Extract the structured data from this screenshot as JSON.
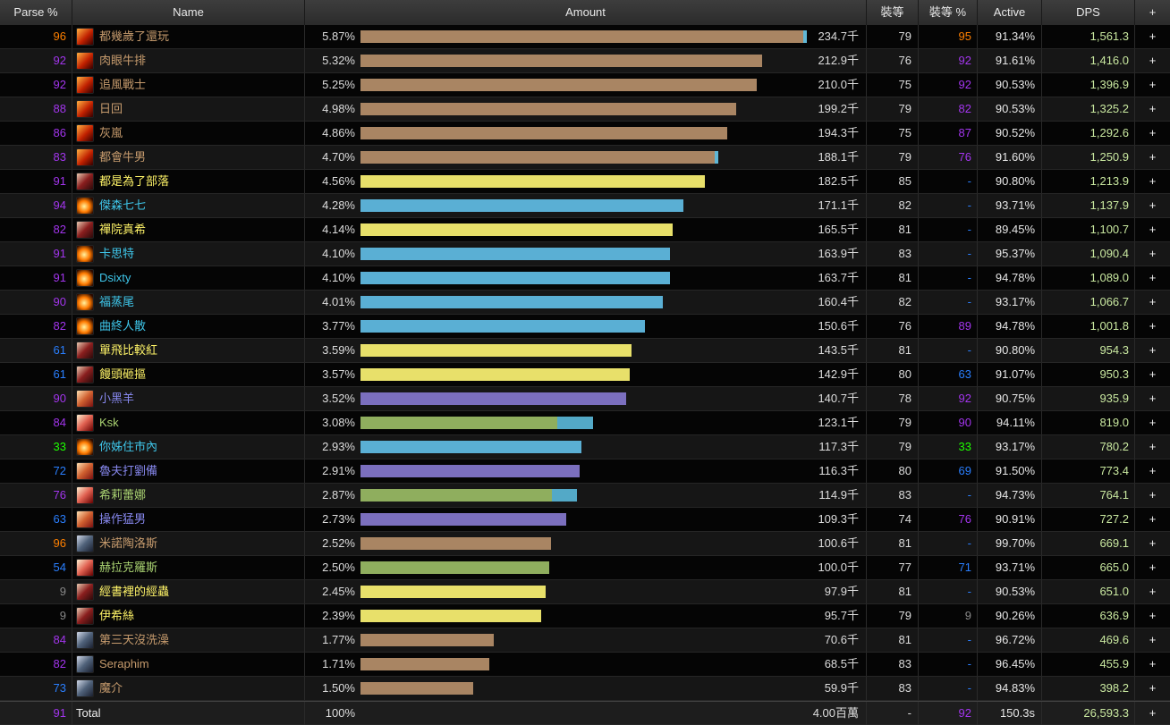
{
  "headers": [
    "Parse %",
    "Name",
    "Amount",
    "裝等",
    "裝等 %",
    "Active",
    "DPS",
    "+"
  ],
  "class_colors": {
    "dk": {
      "name": "#c69b6d",
      "bar": "#a98563",
      "bar2": "#5fb7d6"
    },
    "war": {
      "name": "#fff468",
      "bar": "#e8e06a"
    },
    "mage": {
      "name": "#3fc7eb",
      "bar": "#5aafd4"
    },
    "hunt": {
      "name": "#aad372",
      "bar": "#8fae5e",
      "bar2": "#53a9c7"
    },
    "sham": {
      "name": "#8788ee",
      "bar": "#7b6fbe"
    },
    "pal": {
      "name": "#c69b6d",
      "bar": "#a98563"
    }
  },
  "max_percent": 5.87,
  "rows": [
    {
      "parse": "96",
      "parse_color": "orange",
      "name": "都幾歲了還玩",
      "cls": "dk",
      "icon": "death-knight-icon",
      "percent": "5.87%",
      "pct": 5.87,
      "pct2": 0.05,
      "amount": "234.7千",
      "ilvl": "79",
      "ilvl_p": "95",
      "ilvl_p_color": "orange",
      "active": "91.34%",
      "dps": "1,561.3"
    },
    {
      "parse": "92",
      "parse_color": "purple",
      "name": "肉眼牛排",
      "cls": "dk",
      "icon": "death-knight-icon",
      "percent": "5.32%",
      "pct": 5.32,
      "pct2": 0,
      "amount": "212.9千",
      "ilvl": "76",
      "ilvl_p": "92",
      "ilvl_p_color": "purple",
      "active": "91.61%",
      "dps": "1,416.0"
    },
    {
      "parse": "92",
      "parse_color": "purple",
      "name": "追風戰士",
      "cls": "dk",
      "icon": "death-knight-icon",
      "percent": "5.25%",
      "pct": 5.25,
      "pct2": 0,
      "amount": "210.0千",
      "ilvl": "75",
      "ilvl_p": "92",
      "ilvl_p_color": "purple",
      "active": "90.53%",
      "dps": "1,396.9"
    },
    {
      "parse": "88",
      "parse_color": "purple",
      "name": "日回",
      "cls": "dk",
      "icon": "death-knight-icon",
      "percent": "4.98%",
      "pct": 4.98,
      "pct2": 0,
      "amount": "199.2千",
      "ilvl": "79",
      "ilvl_p": "82",
      "ilvl_p_color": "purple",
      "active": "90.53%",
      "dps": "1,325.2"
    },
    {
      "parse": "86",
      "parse_color": "purple",
      "name": "灰嵐",
      "cls": "dk",
      "icon": "death-knight-icon",
      "percent": "4.86%",
      "pct": 4.86,
      "pct2": 0,
      "amount": "194.3千",
      "ilvl": "75",
      "ilvl_p": "87",
      "ilvl_p_color": "purple",
      "active": "90.52%",
      "dps": "1,292.6"
    },
    {
      "parse": "83",
      "parse_color": "purple",
      "name": "都會牛男",
      "cls": "dk",
      "icon": "death-knight-icon",
      "percent": "4.70%",
      "pct": 4.7,
      "pct2": 0.05,
      "amount": "188.1千",
      "ilvl": "79",
      "ilvl_p": "76",
      "ilvl_p_color": "purple",
      "active": "91.60%",
      "dps": "1,250.9"
    },
    {
      "parse": "91",
      "parse_color": "purple",
      "name": "都是為了部落",
      "cls": "war",
      "icon": "warrior-icon",
      "percent": "4.56%",
      "pct": 4.56,
      "pct2": 0,
      "amount": "182.5千",
      "ilvl": "85",
      "ilvl_p": "-",
      "ilvl_p_color": "blue",
      "active": "90.80%",
      "dps": "1,213.9"
    },
    {
      "parse": "94",
      "parse_color": "purple",
      "name": "傑森七七",
      "cls": "mage",
      "icon": "mage-icon",
      "percent": "4.28%",
      "pct": 4.28,
      "pct2": 0,
      "amount": "171.1千",
      "ilvl": "82",
      "ilvl_p": "-",
      "ilvl_p_color": "blue",
      "active": "93.71%",
      "dps": "1,137.9"
    },
    {
      "parse": "82",
      "parse_color": "purple",
      "name": "禪院真希",
      "cls": "war",
      "icon": "warrior-icon",
      "percent": "4.14%",
      "pct": 4.14,
      "pct2": 0,
      "amount": "165.5千",
      "ilvl": "81",
      "ilvl_p": "-",
      "ilvl_p_color": "blue",
      "active": "89.45%",
      "dps": "1,100.7"
    },
    {
      "parse": "91",
      "parse_color": "purple",
      "name": "卡思特",
      "cls": "mage",
      "icon": "mage-icon",
      "percent": "4.10%",
      "pct": 4.1,
      "pct2": 0,
      "amount": "163.9千",
      "ilvl": "83",
      "ilvl_p": "-",
      "ilvl_p_color": "blue",
      "active": "95.37%",
      "dps": "1,090.4"
    },
    {
      "parse": "91",
      "parse_color": "purple",
      "name": "Dsixty",
      "cls": "mage",
      "icon": "mage-icon",
      "percent": "4.10%",
      "pct": 4.1,
      "pct2": 0,
      "amount": "163.7千",
      "ilvl": "81",
      "ilvl_p": "-",
      "ilvl_p_color": "blue",
      "active": "94.78%",
      "dps": "1,089.0"
    },
    {
      "parse": "90",
      "parse_color": "purple",
      "name": "福蒸尾",
      "cls": "mage",
      "icon": "mage-icon",
      "percent": "4.01%",
      "pct": 4.01,
      "pct2": 0,
      "amount": "160.4千",
      "ilvl": "82",
      "ilvl_p": "-",
      "ilvl_p_color": "blue",
      "active": "93.17%",
      "dps": "1,066.7"
    },
    {
      "parse": "82",
      "parse_color": "purple",
      "name": "曲終人散",
      "cls": "mage",
      "icon": "mage-icon",
      "percent": "3.77%",
      "pct": 3.77,
      "pct2": 0,
      "amount": "150.6千",
      "ilvl": "76",
      "ilvl_p": "89",
      "ilvl_p_color": "purple",
      "active": "94.78%",
      "dps": "1,001.8"
    },
    {
      "parse": "61",
      "parse_color": "blue",
      "name": "單飛比較紅",
      "cls": "war",
      "icon": "warrior-icon",
      "percent": "3.59%",
      "pct": 3.59,
      "pct2": 0,
      "amount": "143.5千",
      "ilvl": "81",
      "ilvl_p": "-",
      "ilvl_p_color": "blue",
      "active": "90.80%",
      "dps": "954.3"
    },
    {
      "parse": "61",
      "parse_color": "blue",
      "name": "饅頭砸摳",
      "cls": "war",
      "icon": "warrior-icon",
      "percent": "3.57%",
      "pct": 3.57,
      "pct2": 0,
      "amount": "142.9千",
      "ilvl": "80",
      "ilvl_p": "63",
      "ilvl_p_color": "blue",
      "active": "91.07%",
      "dps": "950.3"
    },
    {
      "parse": "90",
      "parse_color": "purple",
      "name": "小黑羊",
      "cls": "sham",
      "icon": "shaman-icon",
      "percent": "3.52%",
      "pct": 3.52,
      "pct2": 0,
      "amount": "140.7千",
      "ilvl": "78",
      "ilvl_p": "92",
      "ilvl_p_color": "purple",
      "active": "90.75%",
      "dps": "935.9"
    },
    {
      "parse": "84",
      "parse_color": "purple",
      "name": "Ksk",
      "cls": "hunt",
      "icon": "hunter-icon",
      "percent": "3.08%",
      "pct": 2.61,
      "pct2": 0.47,
      "amount": "123.1千",
      "ilvl": "79",
      "ilvl_p": "90",
      "ilvl_p_color": "purple",
      "active": "94.11%",
      "dps": "819.0"
    },
    {
      "parse": "33",
      "parse_color": "green",
      "name": "你姊住市內",
      "cls": "mage",
      "icon": "mage-icon",
      "percent": "2.93%",
      "pct": 2.93,
      "pct2": 0,
      "amount": "117.3千",
      "ilvl": "79",
      "ilvl_p": "33",
      "ilvl_p_color": "green",
      "active": "93.17%",
      "dps": "780.2"
    },
    {
      "parse": "72",
      "parse_color": "blue",
      "name": "魯夫打劉備",
      "cls": "sham",
      "icon": "shaman-icon",
      "percent": "2.91%",
      "pct": 2.91,
      "pct2": 0,
      "amount": "116.3千",
      "ilvl": "80",
      "ilvl_p": "69",
      "ilvl_p_color": "blue",
      "active": "91.50%",
      "dps": "773.4"
    },
    {
      "parse": "76",
      "parse_color": "purple",
      "name": "希莉蕾娜",
      "cls": "hunt",
      "icon": "hunter-icon",
      "percent": "2.87%",
      "pct": 2.54,
      "pct2": 0.33,
      "amount": "114.9千",
      "ilvl": "83",
      "ilvl_p": "-",
      "ilvl_p_color": "blue",
      "active": "94.73%",
      "dps": "764.1"
    },
    {
      "parse": "63",
      "parse_color": "blue",
      "name": "操作猛男",
      "cls": "sham",
      "icon": "shaman-icon",
      "percent": "2.73%",
      "pct": 2.73,
      "pct2": 0,
      "amount": "109.3千",
      "ilvl": "74",
      "ilvl_p": "76",
      "ilvl_p_color": "purple",
      "active": "90.91%",
      "dps": "727.2"
    },
    {
      "parse": "96",
      "parse_color": "orange",
      "name": "米諾陶洛斯",
      "cls": "pal",
      "icon": "paladin-shield-icon",
      "percent": "2.52%",
      "pct": 2.52,
      "pct2": 0,
      "amount": "100.6千",
      "ilvl": "81",
      "ilvl_p": "-",
      "ilvl_p_color": "blue",
      "active": "99.70%",
      "dps": "669.1"
    },
    {
      "parse": "54",
      "parse_color": "blue",
      "name": "赫拉克羅斯",
      "cls": "hunt",
      "icon": "hunter-icon",
      "percent": "2.50%",
      "pct": 2.5,
      "pct2": 0,
      "amount": "100.0千",
      "ilvl": "77",
      "ilvl_p": "71",
      "ilvl_p_color": "blue",
      "active": "93.71%",
      "dps": "665.0"
    },
    {
      "parse": "9",
      "parse_color": "gray",
      "name": "經書裡的經蟲",
      "cls": "war",
      "icon": "warrior-icon",
      "percent": "2.45%",
      "pct": 2.45,
      "pct2": 0,
      "amount": "97.9千",
      "ilvl": "81",
      "ilvl_p": "-",
      "ilvl_p_color": "blue",
      "active": "90.53%",
      "dps": "651.0"
    },
    {
      "parse": "9",
      "parse_color": "gray",
      "name": "伊希絲",
      "cls": "war",
      "icon": "warrior-icon",
      "percent": "2.39%",
      "pct": 2.39,
      "pct2": 0,
      "amount": "95.7千",
      "ilvl": "79",
      "ilvl_p": "9",
      "ilvl_p_color": "gray",
      "active": "90.26%",
      "dps": "636.9"
    },
    {
      "parse": "84",
      "parse_color": "purple",
      "name": "第三天沒洗澡",
      "cls": "pal",
      "icon": "paladin-shield-icon",
      "percent": "1.77%",
      "pct": 1.77,
      "pct2": 0,
      "amount": "70.6千",
      "ilvl": "81",
      "ilvl_p": "-",
      "ilvl_p_color": "blue",
      "active": "96.72%",
      "dps": "469.6"
    },
    {
      "parse": "82",
      "parse_color": "purple",
      "name": "Seraphim",
      "cls": "pal",
      "icon": "paladin-shield-icon",
      "percent": "1.71%",
      "pct": 1.71,
      "pct2": 0,
      "amount": "68.5千",
      "ilvl": "83",
      "ilvl_p": "-",
      "ilvl_p_color": "blue",
      "active": "96.45%",
      "dps": "455.9"
    },
    {
      "parse": "73",
      "parse_color": "blue",
      "name": "魔介",
      "cls": "pal",
      "icon": "paladin-shield-icon",
      "percent": "1.50%",
      "pct": 1.5,
      "pct2": 0,
      "amount": "59.9千",
      "ilvl": "83",
      "ilvl_p": "-",
      "ilvl_p_color": "blue",
      "active": "94.83%",
      "dps": "398.2"
    }
  ],
  "total": {
    "parse": "91",
    "parse_color": "purple",
    "name": "Total",
    "percent": "100%",
    "amount": "4.00百萬",
    "ilvl": "-",
    "ilvl_p": "92",
    "ilvl_p_color": "purple",
    "active": "150.3s",
    "dps": "26,593.3"
  },
  "plus_label": "+"
}
